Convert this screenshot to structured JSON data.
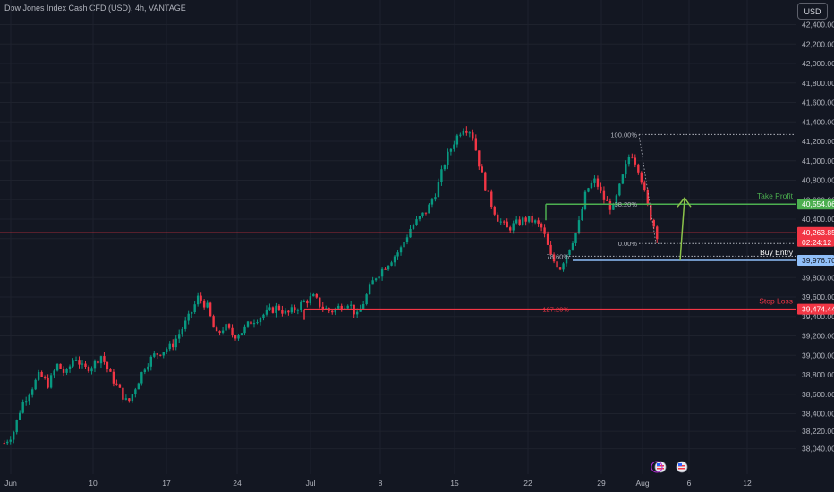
{
  "title": "Dow Jones Index Cash CFD (USD), 4h, VANTAGE",
  "currency_button": "USD",
  "colors": {
    "background": "#131722",
    "grid": "#1e222d",
    "up": "#089981",
    "down": "#f23645",
    "take_profit": "#4caf50",
    "stop_loss": "#f23645",
    "buy_entry": "#90bff9",
    "arrow": "#8bc34a"
  },
  "chart_data": {
    "type": "candlestick",
    "y_ticks": [
      "42,400.00",
      "42,200.00",
      "42,000.00",
      "41,800.00",
      "41,600.00",
      "41,400.00",
      "41,200.00",
      "41,000.00",
      "40,800.00",
      "40,600.00",
      "40,400.00",
      "40,200.00",
      "39,800.00",
      "39,600.00",
      "39,400.00",
      "39,200.00",
      "39,000.00",
      "38,800.00",
      "38,600.00",
      "38,400.00",
      "38,220.00",
      "38,040.00"
    ],
    "x_ticks": [
      "Jun",
      "10",
      "17",
      "24",
      "Jul",
      "8",
      "15",
      "22",
      "29",
      "Aug",
      "6",
      "12"
    ],
    "close_path": [
      38100,
      38200,
      38500,
      38650,
      38800,
      38700,
      38900,
      38800,
      39000,
      38850,
      38900,
      39000,
      38800,
      38650,
      38500,
      38700,
      38900,
      39000,
      39050,
      39100,
      39250,
      39400,
      39600,
      39500,
      39200,
      39300,
      39200,
      39250,
      39350,
      39400,
      39450,
      39500,
      39420,
      39480,
      39550,
      39600,
      39500,
      39450,
      39500,
      39550,
      39400,
      39600,
      39800,
      39900,
      40000,
      40100,
      40300,
      40400,
      40500,
      40700,
      41000,
      41200,
      41350,
      41300,
      40900,
      40600,
      40400,
      40300,
      40350,
      40400,
      40380,
      40300,
      40000,
      39900,
      40100,
      40300,
      40700,
      40800,
      40600,
      40500,
      40800,
      41100,
      40900,
      40500,
      40240
    ],
    "price_labels": [
      {
        "text": "40,554.06",
        "kind": "take_profit"
      },
      {
        "text": "40,263.85",
        "kind": "current"
      },
      {
        "text": "02:24:12",
        "kind": "countdown"
      },
      {
        "text": "39,976.70",
        "kind": "buy_entry"
      },
      {
        "text": "39,474.44",
        "kind": "stop_loss"
      }
    ],
    "annotations": {
      "take_profit": "Take Profit",
      "buy_entry": "Buy Entry",
      "stop_loss": "Stop Loss"
    },
    "fib_labels": [
      "100.00%",
      "38.20%",
      "0.00%",
      "78.60%",
      "127.20%"
    ]
  }
}
